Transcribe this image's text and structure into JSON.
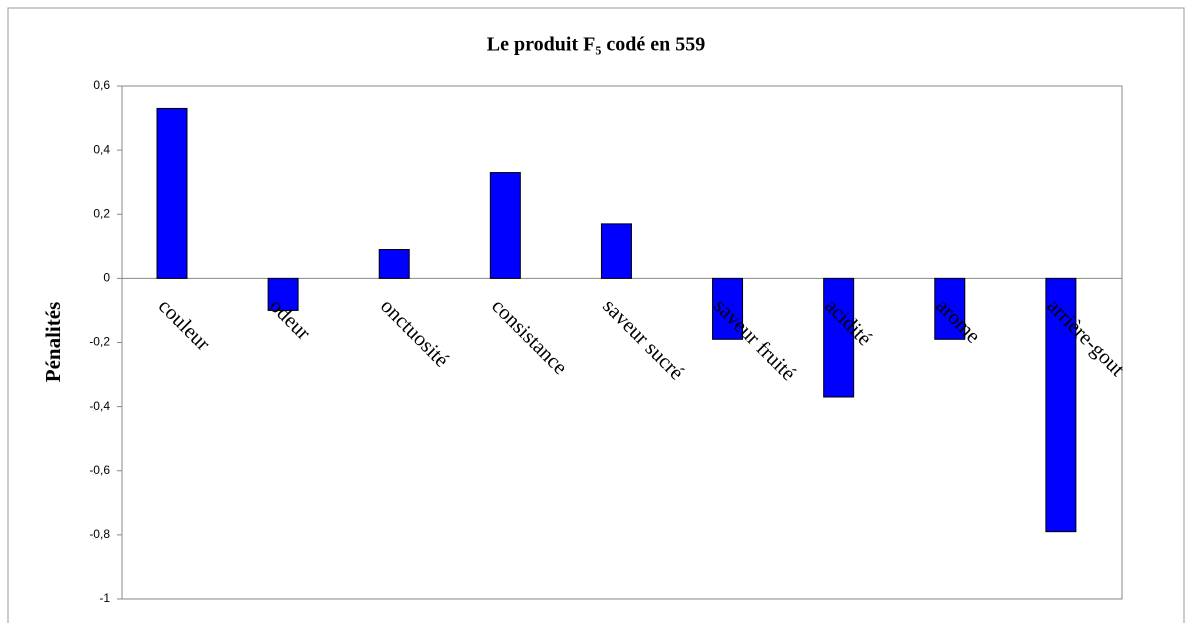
{
  "chart_data": {
    "type": "bar",
    "title": "Le produit F₅ codé en 559",
    "ylabel": "Pénalités",
    "categories": [
      "couleur",
      "odeur",
      "onctuosité",
      "consistance",
      "saveur sucré",
      "saveur fruité",
      "acidité",
      "arome",
      "arrière-gout"
    ],
    "values": [
      0.53,
      -0.1,
      0.09,
      0.33,
      0.17,
      -0.19,
      -0.37,
      -0.19,
      -0.79
    ],
    "color": "#0000ff",
    "ylim": [
      -1,
      0.6
    ],
    "yticks": [
      {
        "value": 0.6,
        "label": "0,6"
      },
      {
        "value": 0.4,
        "label": "0,4"
      },
      {
        "value": 0.2,
        "label": "0,2"
      },
      0,
      {
        "value": -0.2,
        "label": "-0,2"
      },
      {
        "value": -0.4,
        "label": "-0,4"
      },
      {
        "value": -0.6,
        "label": "-0,6"
      },
      {
        "value": -0.8,
        "label": "-0,8"
      },
      {
        "value": -1,
        "label": "-1"
      }
    ],
    "grid": false
  }
}
